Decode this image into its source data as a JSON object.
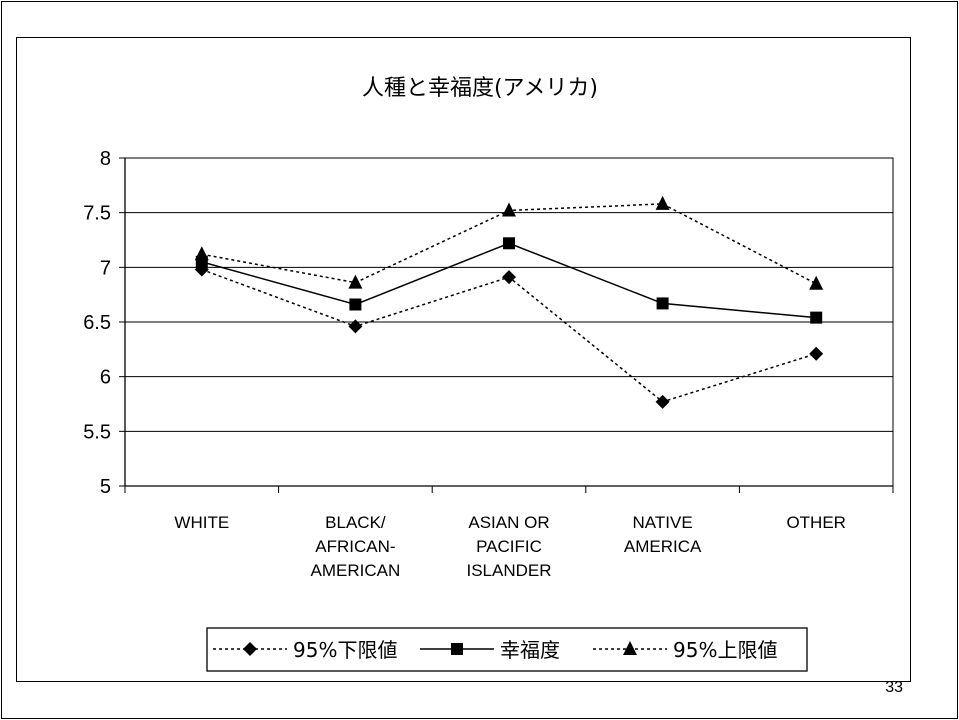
{
  "page_number": "33",
  "chart_data": {
    "type": "line",
    "title": "人種と幸福度(アメリカ)",
    "xlabel": "",
    "ylabel": "",
    "categories": [
      [
        "WHITE"
      ],
      [
        "BLACK/",
        "AFRICAN-",
        "AMERICAN"
      ],
      [
        "ASIAN OR",
        "PACIFIC",
        "ISLANDER"
      ],
      [
        "NATIVE",
        "AMERICA"
      ],
      [
        "OTHER"
      ]
    ],
    "ylim": [
      5,
      8
    ],
    "yticks": [
      "5",
      "5.5",
      "6",
      "6.5",
      "7",
      "7.5",
      "8"
    ],
    "grid": true,
    "legend_position": "bottom",
    "series": [
      {
        "name": "95%下限値",
        "marker": "diamond",
        "line": "dotted",
        "color": "#000000",
        "values": [
          6.98,
          6.46,
          6.91,
          5.77,
          6.21
        ]
      },
      {
        "name": "幸福度",
        "marker": "square",
        "line": "solid",
        "color": "#000000",
        "values": [
          7.05,
          6.66,
          7.22,
          6.67,
          6.54
        ]
      },
      {
        "name": "95%上限値",
        "marker": "triangle",
        "line": "dotted",
        "color": "#000000",
        "values": [
          7.12,
          6.86,
          7.52,
          7.58,
          6.85
        ]
      }
    ]
  }
}
